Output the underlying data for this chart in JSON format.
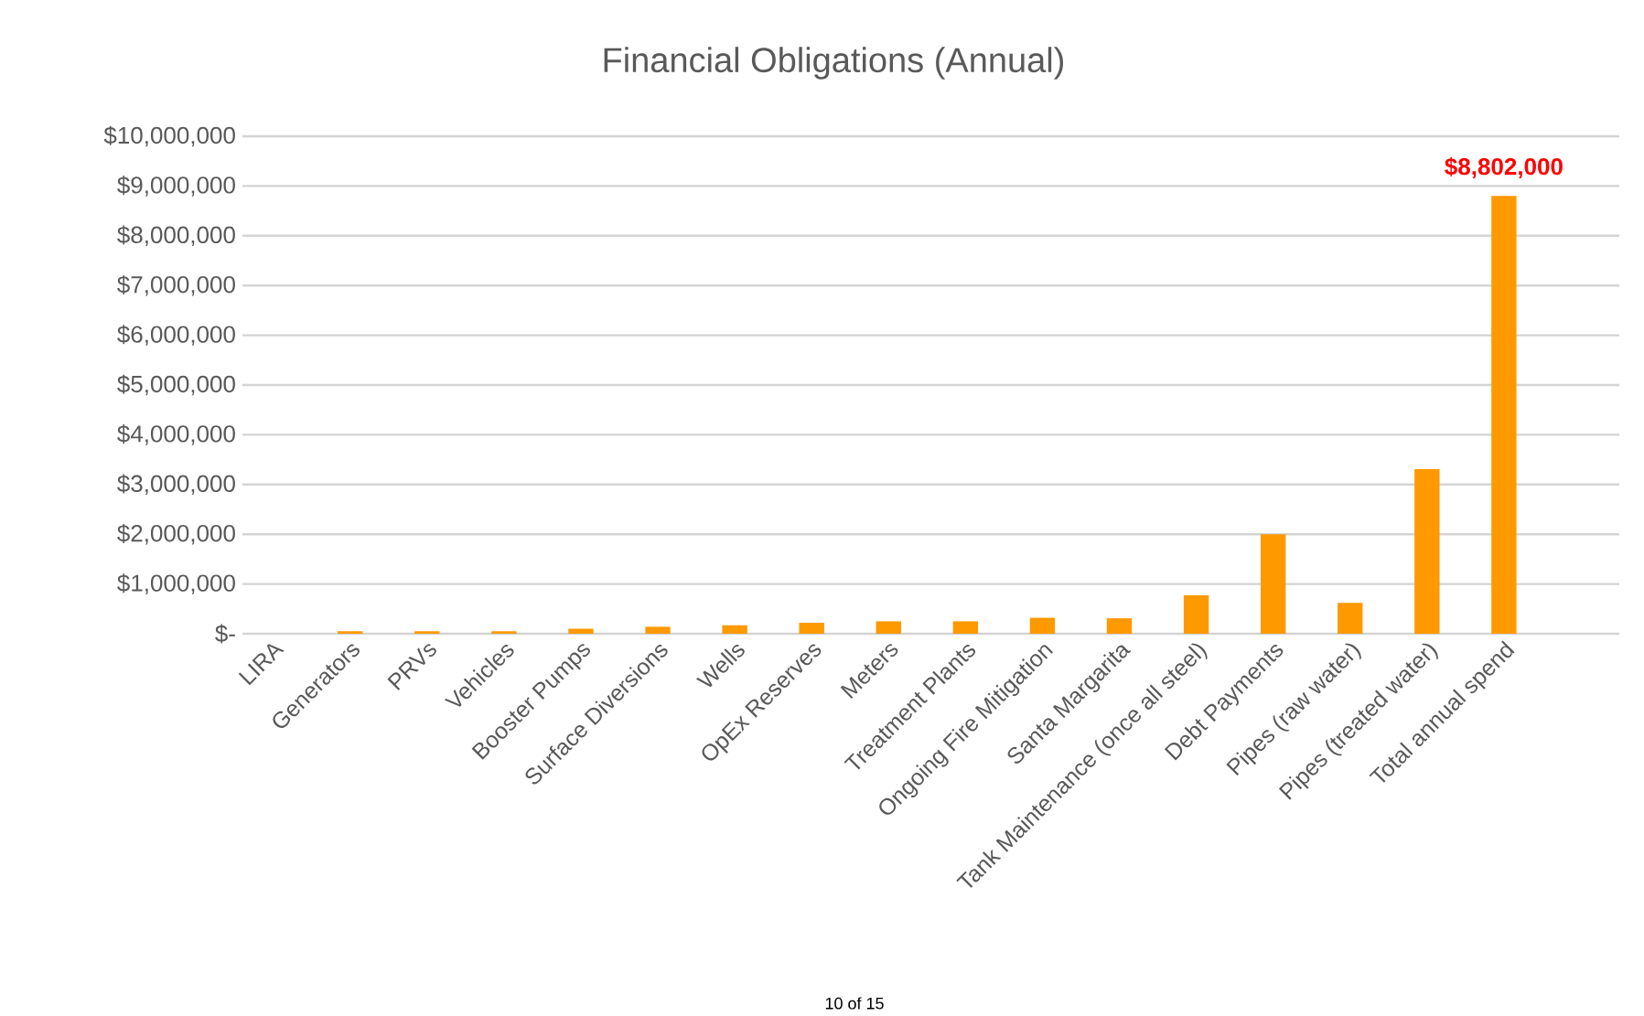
{
  "chart_data": {
    "type": "bar",
    "title": "Financial Obligations (Annual)",
    "categories": [
      "LIRA",
      "Generators",
      "PRVs",
      "Vehicles",
      "Booster Pumps",
      "Surface Diversions",
      "Wells",
      "OpEx Reserves",
      "Meters",
      "Treatment Plants",
      "Ongoing Fire Mitigation",
      "Santa Margarita",
      "Tank Maintenance (once all steel)",
      "Debt Payments",
      "Pipes (raw water)",
      "Pipes (treated water)",
      "Total annual spend"
    ],
    "values": [
      0,
      50000,
      50000,
      50000,
      100000,
      140000,
      170000,
      220000,
      250000,
      250000,
      320000,
      310000,
      770000,
      2000000,
      620000,
      3310000,
      8802000
    ],
    "value_labels": [
      null,
      null,
      null,
      null,
      null,
      null,
      null,
      null,
      null,
      null,
      null,
      null,
      null,
      null,
      null,
      null,
      "$8,802,000"
    ],
    "color": "#ff9900",
    "ylim": [
      0,
      10000000
    ],
    "yticks": [
      {
        "value": 0,
        "label": "$-"
      },
      {
        "value": 1000000,
        "label": "$1,000,000"
      },
      {
        "value": 2000000,
        "label": "$2,000,000"
      },
      {
        "value": 3000000,
        "label": "$3,000,000"
      },
      {
        "value": 4000000,
        "label": "$4,000,000"
      },
      {
        "value": 5000000,
        "label": "$5,000,000"
      },
      {
        "value": 6000000,
        "label": "$6,000,000"
      },
      {
        "value": 7000000,
        "label": "$7,000,000"
      },
      {
        "value": 8000000,
        "label": "$8,000,000"
      },
      {
        "value": 9000000,
        "label": "$9,000,000"
      },
      {
        "value": 10000000,
        "label": "$10,000,000"
      }
    ],
    "grid": "y",
    "annotations": [
      "10 of 15"
    ]
  }
}
